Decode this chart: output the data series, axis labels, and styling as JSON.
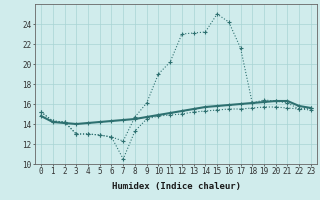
{
  "line1_x": [
    0,
    1,
    2,
    3,
    4,
    5,
    6,
    7,
    8,
    9,
    10,
    11,
    12,
    13,
    14,
    15,
    16,
    17,
    18,
    19,
    20,
    21,
    22,
    23
  ],
  "line1_y": [
    15.2,
    14.3,
    14.2,
    13.0,
    13.0,
    12.9,
    12.7,
    12.3,
    14.7,
    16.1,
    19.0,
    20.2,
    23.0,
    23.1,
    23.2,
    25.0,
    24.2,
    21.6,
    16.1,
    16.4,
    16.3,
    16.1,
    15.5,
    15.6
  ],
  "line2_x": [
    0,
    1,
    2,
    3,
    4,
    5,
    6,
    7,
    8,
    9,
    10,
    11,
    12,
    13,
    14,
    15,
    16,
    17,
    18,
    19,
    20,
    21,
    22,
    23
  ],
  "line2_y": [
    14.8,
    14.2,
    14.1,
    14.0,
    14.1,
    14.2,
    14.3,
    14.4,
    14.5,
    14.7,
    14.9,
    15.1,
    15.3,
    15.5,
    15.7,
    15.8,
    15.9,
    16.0,
    16.1,
    16.2,
    16.3,
    16.3,
    15.8,
    15.6
  ],
  "line3_x": [
    0,
    1,
    2,
    3,
    4,
    5,
    6,
    7,
    8,
    9,
    10,
    11,
    12,
    13,
    14,
    15,
    16,
    17,
    18,
    19,
    20,
    21,
    22,
    23
  ],
  "line3_y": [
    15.2,
    14.3,
    14.2,
    13.0,
    13.0,
    12.9,
    12.7,
    10.5,
    13.3,
    14.5,
    14.8,
    14.9,
    15.0,
    15.2,
    15.3,
    15.4,
    15.5,
    15.5,
    15.6,
    15.7,
    15.7,
    15.6,
    15.5,
    15.4
  ],
  "line_color": "#2d7070",
  "bg_color": "#d0ecec",
  "grid_color": "#a8d4d4",
  "xlabel": "Humidex (Indice chaleur)",
  "ylim": [
    10,
    26
  ],
  "xlim": [
    -0.5,
    23.5
  ],
  "yticks": [
    10,
    12,
    14,
    16,
    18,
    20,
    22,
    24
  ],
  "xticks": [
    0,
    1,
    2,
    3,
    4,
    5,
    6,
    7,
    8,
    9,
    10,
    11,
    12,
    13,
    14,
    15,
    16,
    17,
    18,
    19,
    20,
    21,
    22,
    23
  ],
  "xtick_labels": [
    "0",
    "1",
    "2",
    "3",
    "4",
    "5",
    "6",
    "7",
    "8",
    "9",
    "10",
    "11",
    "12",
    "13",
    "14",
    "15",
    "16",
    "17",
    "18",
    "19",
    "20",
    "21",
    "22",
    "23"
  ],
  "axis_fontsize": 5.5,
  "label_fontsize": 6.5
}
